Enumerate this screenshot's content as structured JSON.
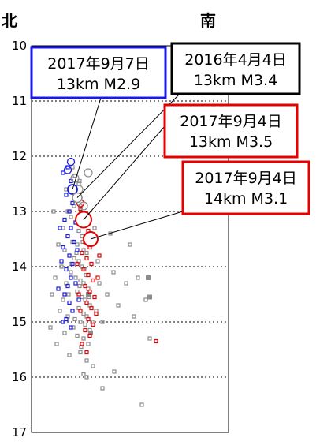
{
  "chart_data": {
    "type": "scatter",
    "direction_labels": {
      "left": "北",
      "right": "南"
    },
    "ylim": [
      10,
      17
    ],
    "yticks": [
      "10",
      "11",
      "12",
      "13",
      "14",
      "15",
      "16",
      "17"
    ],
    "grid": "dotted horizontal lines at each integer depth",
    "colors": {
      "gray": "#8c8c8c",
      "blue": "#1a1ae6",
      "red": "#e60000",
      "axis": "#000000"
    },
    "annotations": [
      {
        "date": "2017年9月7日",
        "depth_mag": "13km  M2.9",
        "color": "#1a1ae6",
        "target_depth": 12.6
      },
      {
        "date": "2016年4月4日",
        "depth_mag": "13km  M3.4",
        "color": "#000000",
        "target_depth": 12.75
      },
      {
        "date": "2017年9月4日",
        "depth_mag": "13km  M3.5",
        "color": "#e60000",
        "target_depth": 13.15
      },
      {
        "date": "2017年9月4日",
        "depth_mag": "14km  M3.1",
        "color": "#e60000",
        "target_depth": 13.5
      }
    ],
    "series": [
      {
        "color": "gray",
        "points": [
          [
            0.52,
            12.2
          ],
          [
            0.55,
            12.35
          ],
          [
            0.6,
            12.5
          ],
          [
            0.58,
            12.7
          ],
          [
            0.62,
            12.9
          ],
          [
            0.65,
            13.05
          ],
          [
            0.5,
            13.1
          ],
          [
            0.56,
            13.2
          ],
          [
            0.6,
            13.35
          ],
          [
            0.64,
            13.45
          ],
          [
            0.52,
            13.55
          ],
          [
            0.58,
            13.6
          ],
          [
            0.66,
            13.7
          ],
          [
            0.7,
            13.75
          ],
          [
            0.54,
            13.85
          ],
          [
            0.6,
            13.9
          ],
          [
            0.64,
            14.0
          ],
          [
            0.68,
            14.05
          ],
          [
            0.5,
            14.1
          ],
          [
            0.56,
            14.2
          ],
          [
            0.62,
            14.25
          ],
          [
            0.66,
            14.3
          ],
          [
            0.72,
            14.4
          ],
          [
            0.58,
            14.45
          ],
          [
            0.64,
            14.55
          ],
          [
            0.68,
            14.6
          ],
          [
            0.74,
            14.7
          ],
          [
            0.6,
            14.75
          ],
          [
            0.66,
            14.85
          ],
          [
            0.7,
            14.9
          ],
          [
            0.62,
            15.0
          ],
          [
            0.68,
            15.05
          ],
          [
            0.74,
            15.15
          ],
          [
            0.58,
            15.25
          ],
          [
            0.66,
            15.3
          ],
          [
            0.72,
            15.4
          ],
          [
            0.62,
            15.55
          ],
          [
            0.7,
            15.7
          ],
          [
            0.78,
            15.8
          ],
          [
            0.66,
            15.95
          ],
          [
            0.44,
            12.6
          ],
          [
            0.46,
            13.0
          ],
          [
            0.4,
            13.3
          ],
          [
            0.42,
            13.7
          ],
          [
            0.38,
            14.0
          ],
          [
            0.44,
            14.3
          ],
          [
            0.4,
            14.6
          ],
          [
            0.46,
            14.9
          ],
          [
            0.42,
            15.2
          ],
          [
            0.34,
            13.6
          ],
          [
            0.3,
            14.2
          ],
          [
            0.36,
            14.8
          ],
          [
            0.32,
            15.4
          ],
          [
            0.48,
            15.6
          ],
          [
            0.8,
            13.3
          ],
          [
            0.84,
            13.9
          ],
          [
            0.86,
            14.3
          ],
          [
            0.82,
            14.8
          ],
          [
            0.9,
            15.0
          ],
          [
            0.96,
            14.5
          ],
          [
            1.0,
            13.4
          ],
          [
            1.04,
            14.1
          ],
          [
            1.1,
            14.7
          ],
          [
            1.2,
            14.3
          ],
          [
            1.25,
            13.6
          ],
          [
            1.3,
            14.9
          ],
          [
            1.35,
            14.2
          ],
          [
            1.45,
            14.6
          ],
          [
            1.5,
            15.3
          ],
          [
            1.4,
            16.5
          ],
          [
            1.05,
            15.9
          ],
          [
            0.9,
            16.2
          ],
          [
            0.7,
            16.0
          ],
          [
            0.28,
            13.0
          ],
          [
            0.26,
            14.5
          ],
          [
            0.24,
            15.1
          ],
          [
            0.54,
            12.9
          ],
          [
            0.57,
            13.75
          ],
          [
            0.61,
            14.35
          ],
          [
            0.55,
            14.95
          ],
          [
            0.63,
            15.45
          ],
          [
            0.5,
            13.95
          ],
          [
            0.47,
            14.5
          ],
          [
            0.53,
            15.1
          ],
          [
            0.59,
            13.15
          ],
          [
            0.65,
            13.55
          ],
          [
            0.69,
            14.15
          ],
          [
            0.73,
            14.55
          ],
          [
            0.77,
            15.0
          ],
          [
            0.61,
            12.45
          ]
        ],
        "filled": [
          [
            1.5,
            14.55
          ],
          [
            0.75,
            15.2
          ],
          [
            0.72,
            14.5
          ],
          [
            1.48,
            14.2
          ]
        ]
      },
      {
        "color": "blue",
        "points": [
          [
            0.46,
            12.2
          ],
          [
            0.5,
            12.45
          ],
          [
            0.44,
            12.7
          ],
          [
            0.52,
            12.85
          ],
          [
            0.48,
            13.0
          ],
          [
            0.42,
            13.15
          ],
          [
            0.5,
            13.3
          ],
          [
            0.46,
            13.45
          ],
          [
            0.54,
            13.55
          ],
          [
            0.4,
            13.65
          ],
          [
            0.48,
            13.8
          ],
          [
            0.52,
            13.95
          ],
          [
            0.44,
            14.05
          ],
          [
            0.5,
            14.2
          ],
          [
            0.46,
            14.35
          ],
          [
            0.42,
            14.5
          ],
          [
            0.48,
            14.65
          ],
          [
            0.52,
            14.8
          ],
          [
            0.44,
            14.95
          ],
          [
            0.4,
            15.0
          ],
          [
            0.36,
            13.3
          ],
          [
            0.38,
            13.9
          ],
          [
            0.34,
            14.4
          ],
          [
            0.56,
            13.2
          ],
          [
            0.58,
            13.7
          ],
          [
            0.56,
            14.3
          ],
          [
            0.6,
            14.6
          ],
          [
            0.54,
            12.6
          ],
          [
            0.4,
            12.3
          ],
          [
            0.5,
            15.1
          ]
        ],
        "circles": [
          [
            0.46,
            12.25
          ],
          [
            0.52,
            12.6
          ],
          [
            0.5,
            12.1
          ]
        ]
      },
      {
        "color": "red",
        "points": [
          [
            0.62,
            12.95
          ],
          [
            0.66,
            13.25
          ],
          [
            0.72,
            13.35
          ],
          [
            0.68,
            13.55
          ],
          [
            0.74,
            13.65
          ],
          [
            0.64,
            13.75
          ],
          [
            0.7,
            13.85
          ],
          [
            0.76,
            13.95
          ],
          [
            0.66,
            14.05
          ],
          [
            0.72,
            14.15
          ],
          [
            0.78,
            14.25
          ],
          [
            0.68,
            14.35
          ],
          [
            0.74,
            14.45
          ],
          [
            0.8,
            14.55
          ],
          [
            0.7,
            14.65
          ],
          [
            0.76,
            14.75
          ],
          [
            0.82,
            14.85
          ],
          [
            0.72,
            14.95
          ],
          [
            0.78,
            15.05
          ],
          [
            0.68,
            15.15
          ],
          [
            0.74,
            15.25
          ],
          [
            0.64,
            15.4
          ],
          [
            0.7,
            15.55
          ],
          [
            0.84,
            14.2
          ],
          [
            0.86,
            13.8
          ],
          [
            0.6,
            14.5
          ],
          [
            0.58,
            13.95
          ],
          [
            0.62,
            14.8
          ],
          [
            0.8,
            13.5
          ],
          [
            1.58,
            15.35
          ]
        ],
        "circles": [
          [
            0.62,
            12.85
          ],
          [
            0.76,
            13.5
          ],
          [
            0.66,
            13.15
          ]
        ]
      }
    ],
    "hollow_gray_circles": [
      [
        0.72,
        12.3
      ],
      [
        0.6,
        12.6
      ],
      [
        0.66,
        12.9
      ],
      [
        0.55,
        12.4
      ]
    ]
  }
}
